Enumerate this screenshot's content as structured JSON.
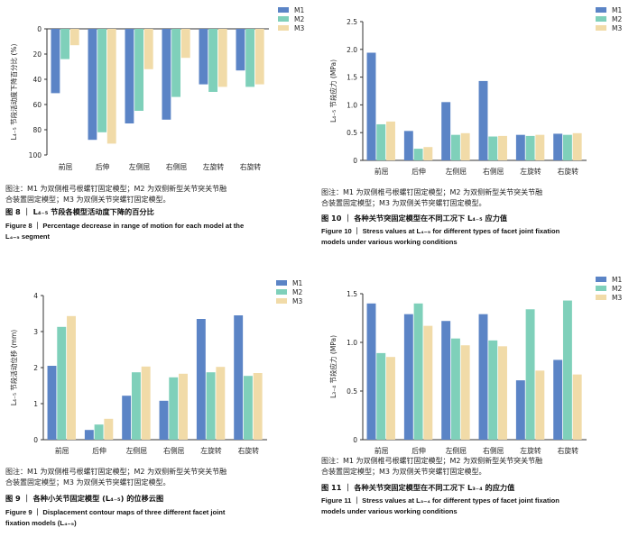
{
  "colors": {
    "M1": "#5b84c6",
    "M2": "#7fd0ba",
    "M3": "#f1dba8"
  },
  "chart_data": [
    {
      "id": "fig8",
      "type": "bar",
      "ylabel": "L₄₋₅ 节段活动度下降百分比 (%)",
      "inverted": true,
      "ylim": [
        0,
        100
      ],
      "yticks": [
        "0",
        "20",
        "40",
        "60",
        "80",
        "100"
      ],
      "categories": [
        "前屈",
        "后伸",
        "左侧屈",
        "右侧屈",
        "左旋转",
        "右旋转"
      ],
      "series": [
        {
          "name": "M1",
          "values": [
            51,
            88,
            75,
            72,
            44,
            33
          ]
        },
        {
          "name": "M2",
          "values": [
            24,
            82,
            65,
            54,
            50,
            46
          ]
        },
        {
          "name": "M3",
          "values": [
            13,
            91,
            32,
            23,
            46,
            44
          ]
        }
      ],
      "legend": [
        "M1",
        "M2",
        "M3"
      ]
    },
    {
      "id": "fig10",
      "type": "bar",
      "ylabel": "L₄₋₅ 节段应力 (MPa)",
      "ylim": [
        0,
        2.5
      ],
      "yticks": [
        "0",
        "0.5",
        "1.0",
        "1.5",
        "2.0",
        "2.5"
      ],
      "categories": [
        "前屈",
        "后伸",
        "左侧屈",
        "右侧屈",
        "左旋转",
        "右旋转"
      ],
      "series": [
        {
          "name": "M1",
          "values": [
            1.94,
            0.53,
            1.05,
            1.43,
            0.46,
            0.48
          ]
        },
        {
          "name": "M2",
          "values": [
            0.65,
            0.21,
            0.46,
            0.43,
            0.44,
            0.46
          ]
        },
        {
          "name": "M3",
          "values": [
            0.7,
            0.24,
            0.49,
            0.44,
            0.46,
            0.49
          ]
        }
      ],
      "legend": [
        "M1",
        "M2",
        "M3"
      ]
    },
    {
      "id": "fig9",
      "type": "bar",
      "ylabel": "L₄₋₅ 节段活动位移 (mm)",
      "ylim": [
        0,
        4
      ],
      "yticks": [
        "0",
        "1",
        "2",
        "3",
        "4"
      ],
      "categories": [
        "前屈",
        "后伸",
        "左侧屈",
        "右侧屈",
        "左旋转",
        "右旋转"
      ],
      "series": [
        {
          "name": "M1",
          "values": [
            2.05,
            0.27,
            1.22,
            1.08,
            3.35,
            3.45
          ]
        },
        {
          "name": "M2",
          "values": [
            3.13,
            0.42,
            1.87,
            1.73,
            1.87,
            1.77
          ]
        },
        {
          "name": "M3",
          "values": [
            3.43,
            0.58,
            2.03,
            1.83,
            2.02,
            1.85
          ]
        }
      ],
      "legend": [
        "M1",
        "M2",
        "M3"
      ]
    },
    {
      "id": "fig11",
      "type": "bar",
      "ylabel": "L₃₋₄ 节段应力 (MPa)",
      "ylim": [
        0,
        1.5
      ],
      "yticks": [
        "0",
        "0.5",
        "1.0",
        "1.5"
      ],
      "categories": [
        "前屈",
        "后伸",
        "左侧屈",
        "右侧屈",
        "左旋转",
        "右旋转"
      ],
      "series": [
        {
          "name": "M1",
          "values": [
            1.4,
            1.29,
            1.22,
            1.29,
            0.61,
            0.82
          ]
        },
        {
          "name": "M2",
          "values": [
            0.89,
            1.4,
            1.04,
            1.02,
            1.34,
            1.43
          ]
        },
        {
          "name": "M3",
          "values": [
            0.85,
            1.17,
            0.97,
            0.96,
            0.71,
            0.67
          ]
        }
      ],
      "legend": [
        "M1",
        "M2",
        "M3"
      ]
    }
  ],
  "captions": {
    "fig8": {
      "note1": "图注：M1 为双侧椎弓根螺钉固定模型；M2 为双侧新型关节突关节融",
      "note2": "合装置固定模型；M3 为双侧关节突螺钉固定模型。",
      "cn": "图 8 ｜ L₄₋₅ 节段各模型活动度下降的百分比",
      "en1": "Figure 8 ｜ Percentage decrease in range of motion for each model at the",
      "en2": "L₄₋₅ segment"
    },
    "fig10": {
      "note1": "图注：M1 为双侧椎弓根螺钉固定模型；M2 为双侧新型关节突关节融",
      "note2": "合装置固定模型；M3 为双侧关节突螺钉固定模型。",
      "cn": "图 10 ｜ 各种关节突固定模型在不同工况下 L₄₋₅ 应力值",
      "en1": "Figure 10 ｜ Stress values at L₄₋₅ for different types of facet joint fixation",
      "en2": "models under various working conditions"
    },
    "fig9": {
      "note1": "图注：M1 为双侧椎弓根螺钉固定模型；M2 为双侧新型关节突关节融",
      "note2": "合装置固定模型；M3 为双侧关节突螺钉固定模型。",
      "cn": "图 9 ｜ 各种小关节固定模型 (L₄₋₅) 的位移云图",
      "en1": "Figure 9 ｜ Displacement contour maps of three different facet joint",
      "en2": "fixation models (L₄₋₅)"
    },
    "fig11": {
      "note1": "图注：M1 为双侧椎弓根螺钉固定模型；M2 为双侧新型关节突关节融",
      "note2": "合装置固定模型；M3 为双侧关节突螺钉固定模型。",
      "cn": "图 11 ｜ 各种关节突固定模型在不同工况下 L₃₋₄ 的应力值",
      "en1": "Figure 11 ｜ Stress values at L₃₋₄ for different types of facet joint fixation",
      "en2": "models under various working conditions"
    }
  }
}
